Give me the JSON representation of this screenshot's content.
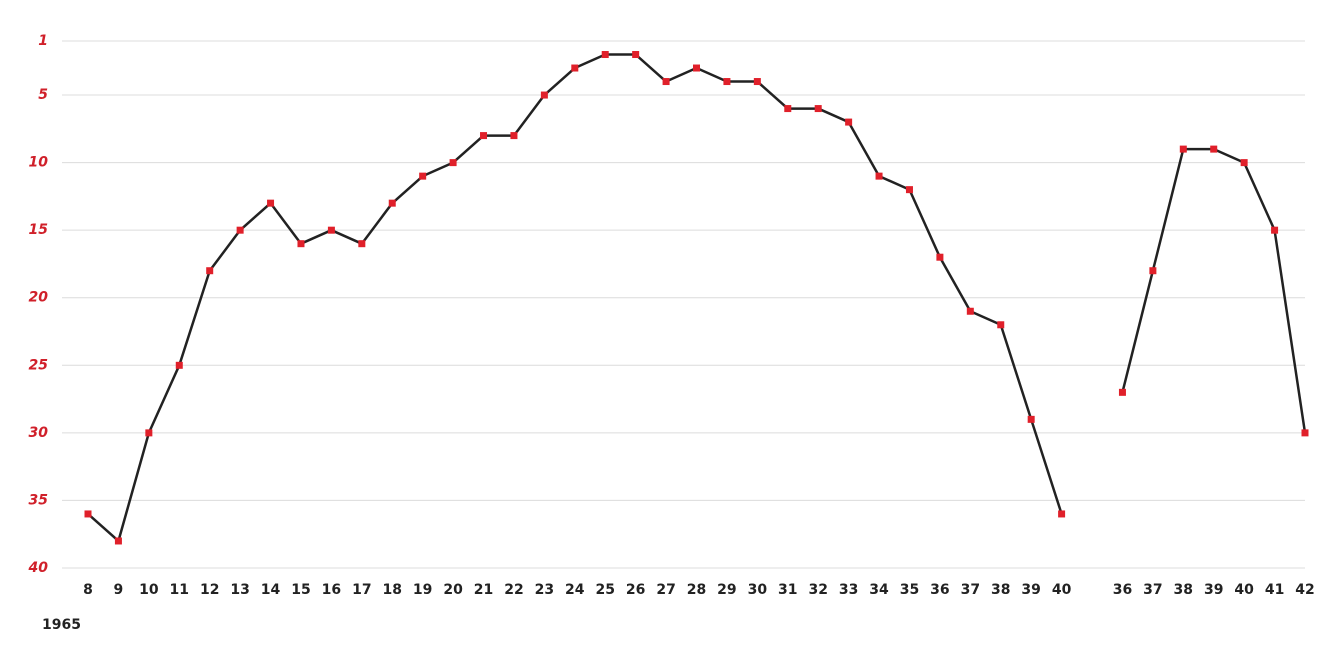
{
  "chart_data": {
    "type": "line",
    "xlabel": "1965",
    "categories": [
      "8",
      "9",
      "10",
      "11",
      "12",
      "13",
      "14",
      "15",
      "16",
      "17",
      "18",
      "19",
      "20",
      "21",
      "22",
      "23",
      "24",
      "25",
      "26",
      "27",
      "28",
      "29",
      "30",
      "31",
      "32",
      "33",
      "34",
      "35",
      "36",
      "37",
      "38",
      "39",
      "40",
      null,
      "36",
      "37",
      "38",
      "39",
      "40",
      "41",
      "42"
    ],
    "series": [
      {
        "color": "#222222",
        "marker_color": "#e0202a",
        "values": [
          36,
          38,
          30,
          25,
          18,
          15,
          13,
          16,
          15,
          16,
          13,
          11,
          10,
          8,
          8,
          5,
          3,
          2,
          2,
          4,
          3,
          4,
          4,
          6,
          6,
          7,
          11,
          12,
          17,
          21,
          22,
          29,
          36,
          null,
          27,
          18,
          9,
          9,
          10,
          15,
          30
        ]
      }
    ],
    "ylim": [
      1,
      40
    ],
    "y_inverted": true,
    "yticks": [
      1,
      5,
      10,
      15,
      20,
      25,
      30,
      35,
      40
    ],
    "grid": true
  }
}
